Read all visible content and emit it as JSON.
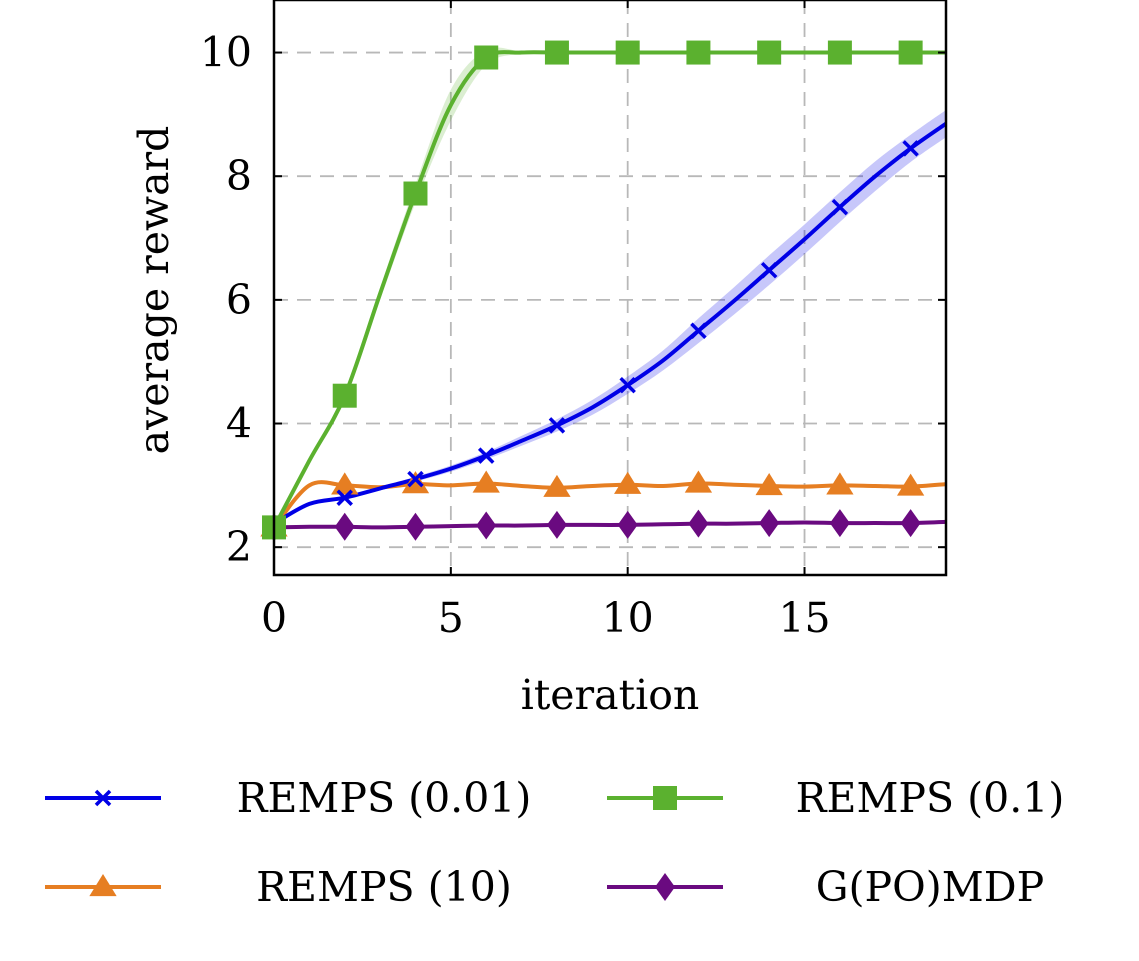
{
  "chart_data": {
    "type": "line",
    "title": "",
    "xlabel": "iteration",
    "ylabel": "average reward",
    "xlim": [
      0,
      19
    ],
    "ylim": [
      1.55,
      10.85
    ],
    "xticks": [
      0,
      5,
      10,
      15
    ],
    "yticks": [
      2,
      4,
      6,
      8,
      10
    ],
    "grid": true,
    "legend_position": "bottom",
    "series": [
      {
        "name": "REMPS (0.01)",
        "color": "#0000e6",
        "marker": "x",
        "x": [
          0,
          1,
          2,
          3,
          4,
          5,
          6,
          7,
          8,
          9,
          10,
          11,
          12,
          13,
          14,
          15,
          16,
          17,
          18,
          19
        ],
        "y": [
          2.38,
          2.7,
          2.8,
          2.95,
          3.1,
          3.27,
          3.48,
          3.72,
          3.97,
          4.26,
          4.62,
          5.02,
          5.5,
          5.98,
          6.48,
          6.98,
          7.5,
          8.0,
          8.45,
          8.85
        ],
        "band": [
          0,
          0,
          0,
          0.03,
          0.04,
          0.05,
          0.06,
          0.08,
          0.1,
          0.12,
          0.14,
          0.16,
          0.2,
          0.22,
          0.24,
          0.24,
          0.24,
          0.24,
          0.22,
          0.22
        ]
      },
      {
        "name": "REMPS (0.1)",
        "color": "#5bb12f",
        "marker": "square",
        "x": [
          0,
          1,
          2,
          3,
          4,
          5,
          6,
          7,
          8,
          9,
          10,
          11,
          12,
          13,
          14,
          15,
          16,
          17,
          18,
          19
        ],
        "y": [
          2.32,
          3.4,
          4.45,
          6.1,
          7.72,
          9.15,
          9.92,
          10.0,
          10.0,
          10.0,
          10.0,
          10.0,
          10.0,
          10.0,
          10.0,
          10.0,
          10.0,
          10.0,
          10.0,
          10.0
        ],
        "band": [
          0,
          0.03,
          0.06,
          0.1,
          0.15,
          0.25,
          0.12,
          0.02,
          0,
          0,
          0,
          0,
          0,
          0,
          0,
          0,
          0,
          0,
          0,
          0
        ]
      },
      {
        "name": "REMPS (10)",
        "color": "#e67e22",
        "marker": "triangle",
        "x": [
          0,
          1,
          2,
          3,
          4,
          5,
          6,
          7,
          8,
          9,
          10,
          11,
          12,
          13,
          14,
          15,
          16,
          17,
          18,
          19
        ],
        "y": [
          2.32,
          3.0,
          3.0,
          2.97,
          3.02,
          3.0,
          3.03,
          2.99,
          2.96,
          2.99,
          3.01,
          2.99,
          3.03,
          3.01,
          2.99,
          2.98,
          3.0,
          2.99,
          2.98,
          3.02
        ]
      },
      {
        "name": "G(PO)MDP",
        "color": "#6a0a80",
        "marker": "diamond",
        "x": [
          0,
          1,
          2,
          3,
          4,
          5,
          6,
          7,
          8,
          9,
          10,
          11,
          12,
          13,
          14,
          15,
          16,
          17,
          18,
          19
        ],
        "y": [
          2.32,
          2.33,
          2.33,
          2.32,
          2.33,
          2.34,
          2.35,
          2.35,
          2.36,
          2.36,
          2.36,
          2.37,
          2.38,
          2.38,
          2.39,
          2.4,
          2.39,
          2.39,
          2.39,
          2.41
        ]
      }
    ]
  }
}
